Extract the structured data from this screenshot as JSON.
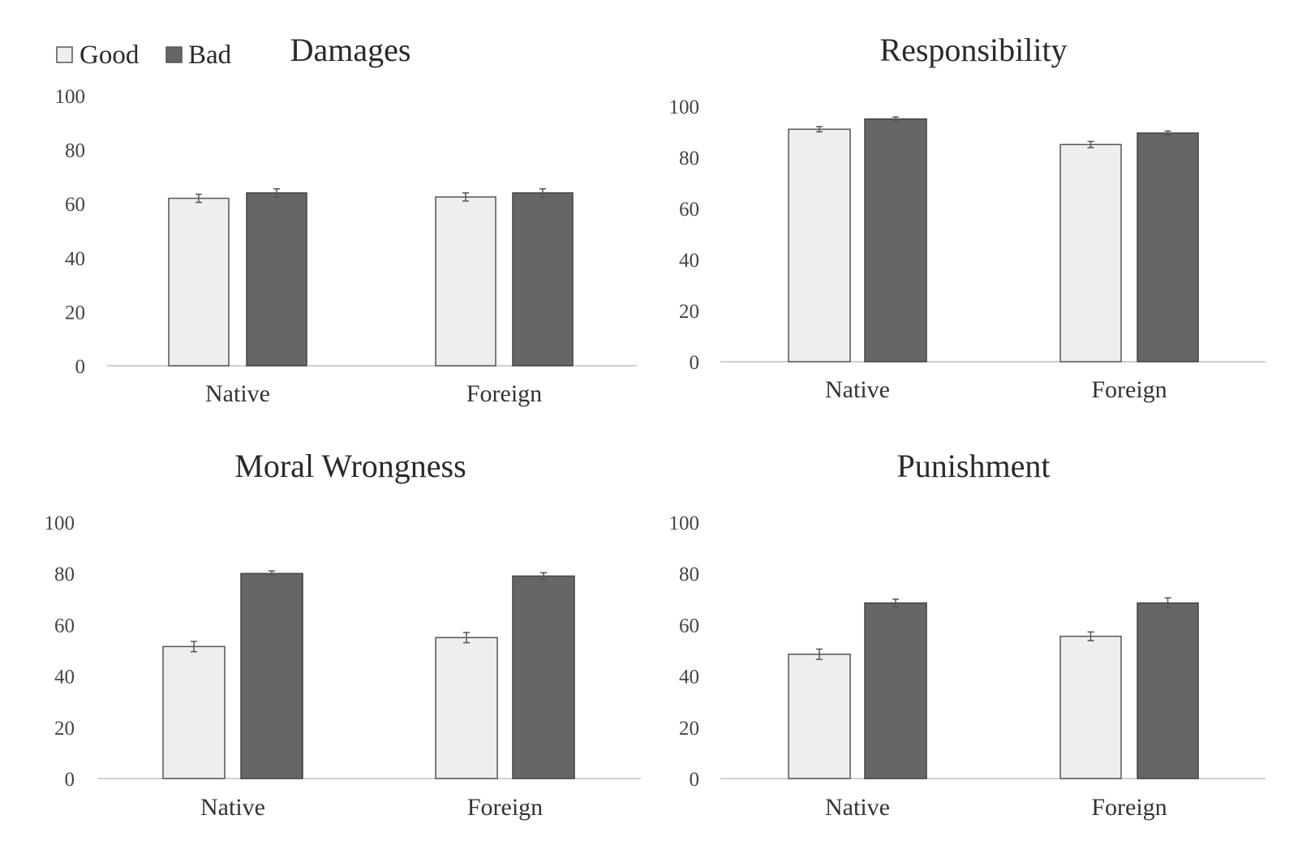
{
  "legend": {
    "items": [
      {
        "label": "Good",
        "color": "#eeeeee"
      },
      {
        "label": "Bad",
        "color": "#666666"
      }
    ]
  },
  "chart_data": [
    {
      "type": "bar",
      "title": "Damages",
      "categories": [
        "Native",
        "Foreign"
      ],
      "series": [
        {
          "name": "Good",
          "values": [
            62,
            62.5
          ],
          "errors": [
            1.5,
            1.5
          ]
        },
        {
          "name": "Bad",
          "values": [
            64,
            64
          ],
          "errors": [
            1.5,
            1.5
          ]
        }
      ],
      "ylim": [
        0,
        100
      ],
      "yticks": [
        0,
        20,
        40,
        60,
        80,
        100
      ],
      "legend": "top-left",
      "grid": false
    },
    {
      "type": "bar",
      "title": "Responsibility",
      "categories": [
        "Native",
        "Foreign"
      ],
      "series": [
        {
          "name": "Good",
          "values": [
            91,
            85
          ],
          "errors": [
            1,
            1.2
          ]
        },
        {
          "name": "Bad",
          "values": [
            95,
            89.5
          ],
          "errors": [
            0.8,
            0.8
          ]
        }
      ],
      "ylim": [
        0,
        100
      ],
      "yticks": [
        0,
        20,
        40,
        60,
        80,
        100
      ],
      "grid": false
    },
    {
      "type": "bar",
      "title": "Moral Wrongness",
      "categories": [
        "Native",
        "Foreign"
      ],
      "series": [
        {
          "name": "Good",
          "values": [
            51.5,
            55
          ],
          "errors": [
            2,
            2
          ]
        },
        {
          "name": "Bad",
          "values": [
            80,
            79
          ],
          "errors": [
            1,
            1.3
          ]
        }
      ],
      "ylim": [
        0,
        100
      ],
      "yticks": [
        0,
        20,
        40,
        60,
        80,
        100
      ],
      "grid": false
    },
    {
      "type": "bar",
      "title": "Punishment",
      "categories": [
        "Native",
        "Foreign"
      ],
      "series": [
        {
          "name": "Good",
          "values": [
            48.5,
            55.5
          ],
          "errors": [
            2,
            1.7
          ]
        },
        {
          "name": "Bad",
          "values": [
            68.5,
            68.5
          ],
          "errors": [
            1.5,
            2
          ]
        }
      ],
      "ylim": [
        0,
        100
      ],
      "yticks": [
        0,
        20,
        40,
        60,
        80,
        100
      ],
      "grid": false
    }
  ]
}
